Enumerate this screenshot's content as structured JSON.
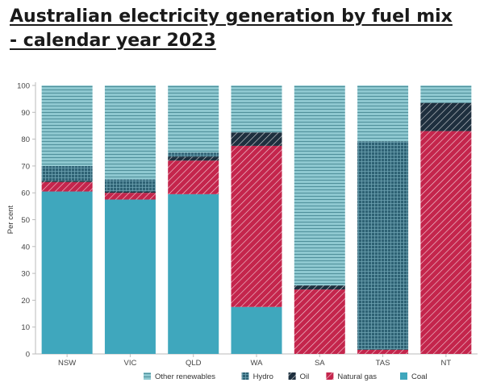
{
  "title_line1": "Australian electricity generation by fuel mix",
  "title_line2": "- calendar year 2023",
  "chart_data": {
    "type": "bar",
    "stacked": true,
    "categories": [
      "NSW",
      "VIC",
      "QLD",
      "WA",
      "SA",
      "TAS",
      "NT"
    ],
    "ylabel": "Per cent",
    "xlabel": "",
    "ylim": [
      0,
      100
    ],
    "yticks": [
      0,
      10,
      20,
      30,
      40,
      50,
      60,
      70,
      80,
      90,
      100
    ],
    "grid": false,
    "legend_position": "bottom",
    "series": [
      {
        "name": "Coal",
        "color": "#3fa7bd",
        "pattern": "solid",
        "values": [
          60.5,
          57.5,
          59.5,
          17.5,
          0,
          0,
          0
        ]
      },
      {
        "name": "Natural gas",
        "color": "#c4254c",
        "pattern": "diagonal",
        "values": [
          3.5,
          2.5,
          12.5,
          60,
          24,
          1.5,
          83
        ]
      },
      {
        "name": "Oil",
        "color": "#1e2f3e",
        "pattern": "diagonal",
        "values": [
          0.5,
          0.5,
          1.5,
          5,
          1.5,
          0.2,
          10.5
        ]
      },
      {
        "name": "Hydro",
        "color": "#2e6274",
        "pattern": "grid",
        "values": [
          5.5,
          4.5,
          1.5,
          0,
          0,
          77.5,
          0
        ]
      },
      {
        "name": "Other renewables",
        "color": "#8ec8d0",
        "pattern": "horizontal",
        "values": [
          30,
          35,
          25,
          17.5,
          74.5,
          20.8,
          6.5
        ]
      }
    ],
    "legend_order": [
      "Other renewables",
      "Hydro",
      "Oil",
      "Natural gas",
      "Coal"
    ]
  }
}
